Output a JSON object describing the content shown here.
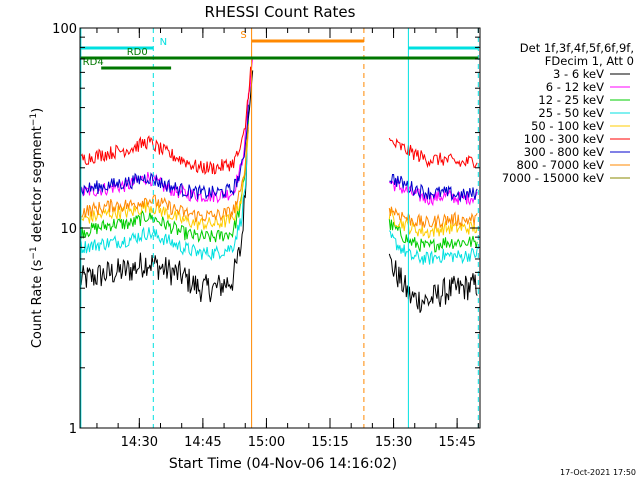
{
  "chart_data": {
    "type": "line",
    "title": "RHESSI Count Rates",
    "xlabel": "Start Time (04-Nov-06 14:16:02)",
    "ylabel": "Count Rate (s⁻¹ detector segment⁻¹)",
    "ylabel_parts": {
      "main": "Count Rate (s",
      "sup1": "−1",
      "mid": " detector segment",
      "sup2": "−1",
      "end": ")"
    },
    "y_scale": "log",
    "ylim": [
      1,
      100
    ],
    "yticks": [
      {
        "value": 1,
        "label": "1"
      },
      {
        "value": 10,
        "label": "10"
      },
      {
        "value": 100,
        "label": "100"
      }
    ],
    "xlim_minutes_after_start": [
      0,
      94.4
    ],
    "xticks": [
      {
        "minutes": 14.0,
        "label": "14:30"
      },
      {
        "minutes": 29.0,
        "label": "14:45"
      },
      {
        "minutes": 44.0,
        "label": "15:00"
      },
      {
        "minutes": 59.0,
        "label": "15:15"
      },
      {
        "minutes": 74.0,
        "label": "15:30"
      },
      {
        "minutes": 89.0,
        "label": "15:45"
      }
    ],
    "legend_position": "right",
    "legend_header": [
      "Det 1f,3f,4f,5f,6f,9f,",
      "FDecim 1, Att 0"
    ],
    "series": [
      {
        "name": "3 - 6 keV",
        "color": "#000000",
        "x": [
          0,
          8,
          12,
          16,
          20,
          24,
          28,
          32,
          36,
          38,
          39,
          39.5,
          40,
          40.5,
          41,
          70,
          73,
          78,
          82,
          86,
          90,
          94
        ],
        "y": [
          5.5,
          6.0,
          6.2,
          6.8,
          6.2,
          5.8,
          5.0,
          5.0,
          5.5,
          8.0,
          15,
          30,
          45,
          60,
          80,
          null,
          6.8,
          4.5,
          4.3,
          4.8,
          5.0,
          5.2
        ]
      },
      {
        "name": "6 - 12 keV",
        "color": "#ff00ff",
        "x": [
          0,
          8,
          12,
          16,
          20,
          24,
          28,
          32,
          36,
          38,
          39,
          39.5,
          40,
          40.5,
          41,
          70,
          73,
          78,
          82,
          86,
          90,
          94
        ],
        "y": [
          15,
          16,
          16.5,
          18,
          16,
          15,
          14.5,
          14.5,
          15,
          20,
          28,
          38,
          50,
          65,
          75,
          null,
          17,
          15,
          14,
          14.5,
          14,
          14.5
        ]
      },
      {
        "name": "12 - 25 keV",
        "color": "#00cc00",
        "x": [
          0,
          8,
          12,
          16,
          20,
          24,
          28,
          32,
          36,
          38,
          39,
          39.5,
          40,
          70,
          73,
          78,
          82,
          86,
          90,
          94
        ],
        "y": [
          9.5,
          10.5,
          10.5,
          11.5,
          10.5,
          9.5,
          9.0,
          9.0,
          9.5,
          13,
          20,
          30,
          40,
          null,
          10.5,
          8.5,
          8.0,
          8.5,
          8.5,
          8.5
        ]
      },
      {
        "name": "25 - 50 keV",
        "color": "#00e0e0",
        "x": [
          0,
          8,
          12,
          16,
          20,
          24,
          28,
          32,
          36,
          38,
          39,
          39.5,
          40,
          70,
          73,
          78,
          82,
          86,
          90,
          94
        ],
        "y": [
          8.0,
          8.5,
          8.8,
          9.5,
          8.8,
          8.0,
          7.5,
          7.5,
          8.0,
          11,
          16,
          25,
          35,
          null,
          9.0,
          7.2,
          7.0,
          7.3,
          7.2,
          7.5
        ]
      },
      {
        "name": "50 - 100 keV",
        "color": "#ffcc00",
        "x": [
          0,
          8,
          12,
          16,
          20,
          24,
          28,
          32,
          36,
          38,
          39,
          39.5,
          40,
          70,
          73,
          78,
          82,
          86,
          90,
          94
        ],
        "y": [
          11,
          12,
          12,
          13,
          12,
          11,
          10.5,
          10.5,
          11,
          14,
          20,
          28,
          36,
          null,
          11.5,
          10,
          9.5,
          10,
          10,
          10
        ]
      },
      {
        "name": "100 - 300 keV",
        "color": "#ff0000",
        "x": [
          0,
          8,
          12,
          16,
          20,
          24,
          28,
          32,
          36,
          38,
          39,
          39.5,
          40,
          40.5,
          70,
          73,
          78,
          82,
          86,
          90,
          94
        ],
        "y": [
          22,
          24,
          25,
          27,
          24,
          22,
          20,
          20,
          21,
          25,
          32,
          42,
          55,
          70,
          null,
          27,
          24,
          22,
          22,
          21,
          22
        ]
      },
      {
        "name": "300 - 800 keV",
        "color": "#0000cc",
        "x": [
          0,
          8,
          12,
          16,
          20,
          24,
          28,
          32,
          36,
          38,
          39,
          39.5,
          40,
          70,
          73,
          78,
          82,
          86,
          90,
          94
        ],
        "y": [
          15.5,
          16.5,
          17,
          18,
          16.5,
          15.5,
          15,
          15,
          15.5,
          19,
          26,
          35,
          45,
          null,
          18,
          16,
          15,
          15,
          14.5,
          15
        ]
      },
      {
        "name": "800 - 7000 keV",
        "color": "#ff8800",
        "x": [
          0,
          8,
          12,
          16,
          20,
          24,
          28,
          32,
          36,
          38,
          39,
          39.5,
          40,
          70,
          73,
          78,
          82,
          86,
          90,
          94
        ],
        "y": [
          12,
          13,
          13,
          14,
          13,
          12,
          11.5,
          11.5,
          12,
          15,
          21,
          29,
          38,
          null,
          12.5,
          11,
          10.5,
          11,
          11,
          11
        ]
      },
      {
        "name": "7000 - 15000 keV",
        "color": "#888800",
        "x": [],
        "y": []
      }
    ],
    "vertical_markers": [
      {
        "minutes": 0.2,
        "color": "#00e0e0",
        "style": "solid"
      },
      {
        "minutes": 17.3,
        "color": "#00e0e0",
        "style": "dashed"
      },
      {
        "minutes": 40.5,
        "color": "#ff8800",
        "style": "solid"
      },
      {
        "minutes": 67.0,
        "color": "#ff8800",
        "style": "dashed"
      },
      {
        "minutes": 77.5,
        "color": "#00e0e0",
        "style": "solid"
      },
      {
        "minutes": 94.0,
        "color": "#00e0e0",
        "style": "dashed"
      }
    ],
    "flag_bars": [
      {
        "label": "N",
        "color": "#00e0e0",
        "x0": 0.2,
        "x1": 17.3,
        "level": 0,
        "label_at": "end"
      },
      {
        "label": "",
        "color": "#00e0e0",
        "x0": 77.5,
        "x1": 94.0,
        "level": 0,
        "label_at": "none"
      },
      {
        "label": "S",
        "color": "#ff8800",
        "x0": 40.5,
        "x1": 67.0,
        "level": -1,
        "label_at": "start"
      },
      {
        "label": "RD0",
        "color": "#007700",
        "x0": 0.2,
        "x1": 94.0,
        "level": 1,
        "label_at": "custom",
        "label_minutes": 13.5
      },
      {
        "label": "RD4",
        "color": "#007700",
        "x0": 5.0,
        "x1": 21.5,
        "level": 2,
        "label_at": "start"
      }
    ]
  },
  "footer": {
    "timestamp": "17-Oct-2021 17:50"
  }
}
